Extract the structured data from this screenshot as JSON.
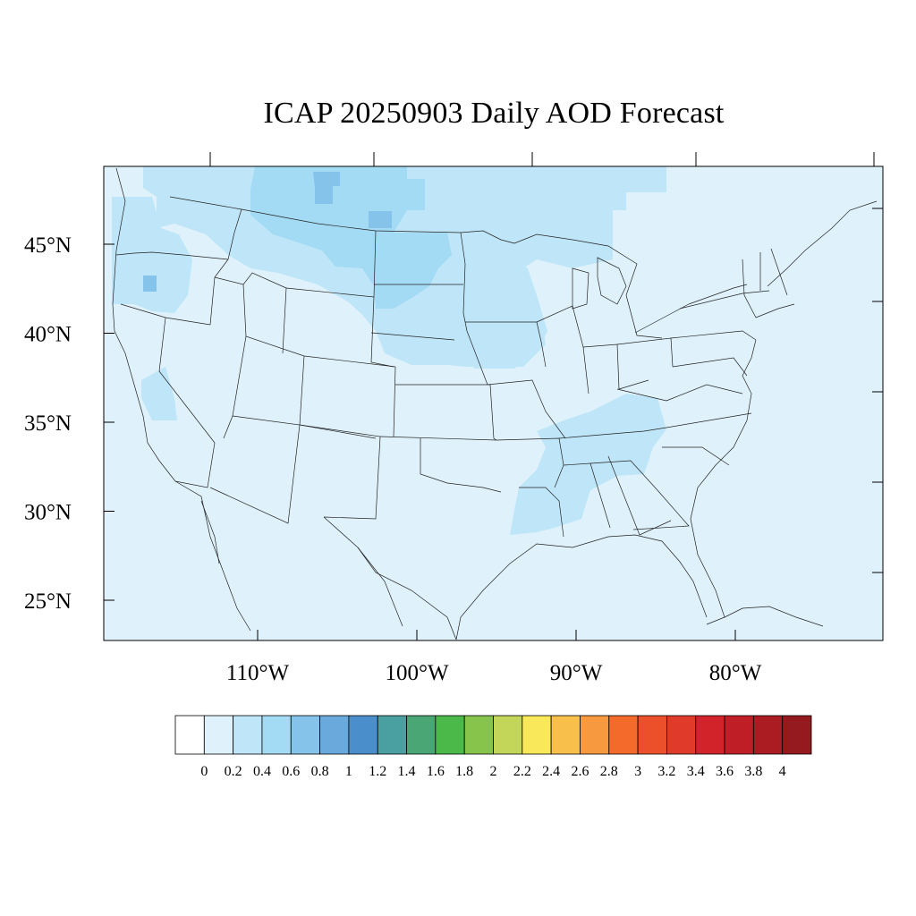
{
  "title": "ICAP 20250903 Daily AOD Forecast",
  "map": {
    "lon_range": [
      -119.2,
      -70.2
    ],
    "lat_range": [
      22.8,
      49.6
    ],
    "background_value_color": "#dff2fb",
    "lat_ticks": [
      {
        "value": 45,
        "label": "45°N"
      },
      {
        "value": 40,
        "label": "40°N"
      },
      {
        "value": 35,
        "label": "35°N"
      },
      {
        "value": 30,
        "label": "30°N"
      },
      {
        "value": 25,
        "label": "25°N"
      }
    ],
    "lon_ticks": [
      {
        "value": -110,
        "label": "110°W"
      },
      {
        "value": -100,
        "label": "100°W"
      },
      {
        "value": -90,
        "label": "90°W"
      },
      {
        "value": -80,
        "label": "80°W"
      }
    ],
    "aod_regions": [
      {
        "name": "northern-plains-smoke",
        "level": 0.4,
        "color": "#bfe6f8"
      },
      {
        "name": "montana-dakotas-core",
        "level": 0.6,
        "color": "#a3dbf5"
      },
      {
        "name": "oregon-plume",
        "level": 0.4,
        "color": "#bfe6f8"
      },
      {
        "name": "upper-midwest",
        "level": 0.4,
        "color": "#bfe6f8"
      },
      {
        "name": "tennessee-valley",
        "level": 0.4,
        "color": "#bfe6f8"
      },
      {
        "name": "california-valley",
        "level": 0.4,
        "color": "#bfe6f8"
      }
    ]
  },
  "colorbar": {
    "colors": [
      "#ffffff",
      "#dff2fb",
      "#bfe6f8",
      "#a3dbf5",
      "#86c3ea",
      "#6aa9db",
      "#4a8fcc",
      "#4a9fa0",
      "#4aa675",
      "#4bb84a",
      "#86c44b",
      "#c4d65a",
      "#f8e85a",
      "#f8c04a",
      "#f79a3f",
      "#f46a2a",
      "#eb502a",
      "#e03a2a",
      "#d2232a",
      "#c01e27",
      "#aa1c22",
      "#951a1f"
    ],
    "labels": [
      "0",
      "0.2",
      "0.4",
      "0.6",
      "0.8",
      "1",
      "1.2",
      "1.4",
      "1.6",
      "1.8",
      "2",
      "2.2",
      "2.4",
      "2.6",
      "2.8",
      "3",
      "3.2",
      "3.4",
      "3.6",
      "3.8",
      "4"
    ]
  }
}
